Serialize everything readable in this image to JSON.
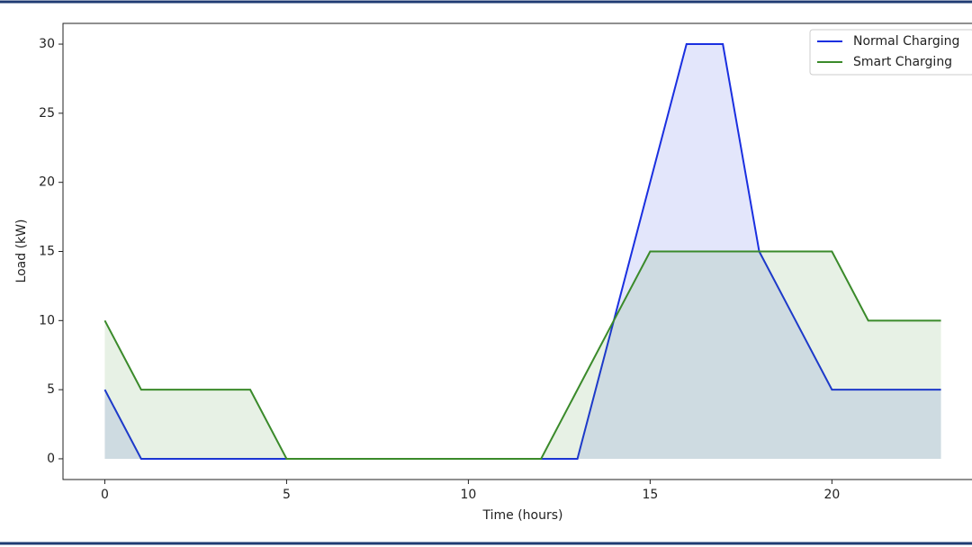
{
  "chart_data": {
    "type": "line",
    "x_label": "Time (hours)",
    "y_label": "Load (kW)",
    "x": [
      0,
      1,
      2,
      3,
      4,
      5,
      6,
      7,
      8,
      9,
      10,
      11,
      12,
      13,
      14,
      15,
      16,
      17,
      18,
      19,
      20,
      21,
      22,
      23
    ],
    "series": [
      {
        "name": "Normal Charging",
        "color": "#1a2fe0",
        "fill": true,
        "values": [
          5,
          0,
          0,
          0,
          0,
          0,
          0,
          0,
          0,
          0,
          0,
          0,
          0,
          0,
          10,
          20,
          30,
          30,
          15,
          10,
          5,
          5,
          5,
          5
        ]
      },
      {
        "name": "Smart Charging",
        "color": "#3a8a2a",
        "fill": true,
        "values": [
          10,
          5,
          5,
          5,
          5,
          0,
          0,
          0,
          0,
          0,
          0,
          0,
          0,
          5,
          10,
          15,
          15,
          15,
          15,
          15,
          15,
          10,
          10,
          10
        ]
      }
    ],
    "xlim": [
      -1.15,
      24.15
    ],
    "xticks": [
      0,
      5,
      10,
      15,
      20
    ],
    "ylim": [
      -1.5,
      31.5
    ],
    "yticks": [
      0,
      5,
      10,
      15,
      20,
      25,
      30
    ],
    "legend": "upper right"
  }
}
